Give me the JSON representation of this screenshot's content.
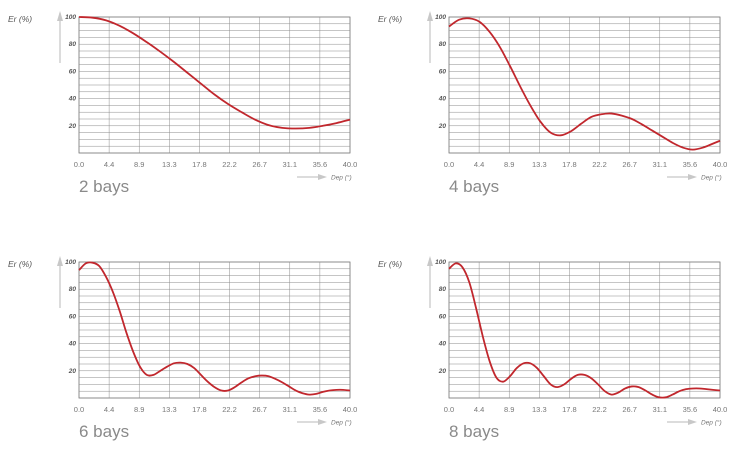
{
  "chart_data": [
    {
      "type": "line",
      "caption": "2 bays",
      "xlabel": "Dep (°)",
      "ylabel": "Er (%)",
      "x_ticks": [
        "0.0",
        "4.4",
        "8.9",
        "13.3",
        "17.8",
        "22.2",
        "26.7",
        "31.1",
        "35.6",
        "40.0"
      ],
      "y_ticks": [
        "100",
        "80",
        "60",
        "40",
        "20"
      ],
      "xlim": [
        0,
        40
      ],
      "ylim": [
        0,
        100
      ],
      "grid": true,
      "line_color": "#c1272d",
      "x": [
        0,
        2,
        4,
        6,
        8,
        10,
        12,
        14,
        16,
        18,
        20,
        22,
        24,
        26,
        28,
        30,
        32,
        34,
        36,
        38,
        40
      ],
      "y": [
        100,
        99.5,
        97.5,
        93.5,
        88,
        81.5,
        74.5,
        67,
        59,
        51,
        43,
        36,
        30,
        24.5,
        20.5,
        18.5,
        18,
        18.5,
        20,
        22,
        24.5
      ]
    },
    {
      "type": "line",
      "caption": "4 bays",
      "xlabel": "Dep (°)",
      "ylabel": "Er (%)",
      "x_ticks": [
        "0.0",
        "4.4",
        "8.9",
        "13.3",
        "17.8",
        "22.2",
        "26.7",
        "31.1",
        "35.6",
        "40.0"
      ],
      "y_ticks": [
        "100",
        "80",
        "60",
        "40",
        "20"
      ],
      "xlim": [
        0,
        40
      ],
      "ylim": [
        0,
        100
      ],
      "grid": true,
      "line_color": "#c1272d",
      "x": [
        0,
        1.5,
        3,
        4.5,
        6,
        7.5,
        9,
        10.5,
        12,
        13.5,
        15,
        16.5,
        18,
        19.5,
        21,
        22.5,
        24,
        25.5,
        27,
        28.5,
        30,
        31.5,
        33,
        34.5,
        36,
        37.5,
        39,
        40
      ],
      "y": [
        93,
        98,
        99,
        96.5,
        89,
        78,
        64,
        49,
        35,
        23,
        15,
        13,
        16,
        21.5,
        26.5,
        28.5,
        29,
        27.5,
        25,
        21,
        16.5,
        12,
        7.5,
        4,
        2.5,
        4,
        7,
        9
      ]
    },
    {
      "type": "line",
      "caption": "6 bays",
      "xlabel": "Dep (°)",
      "ylabel": "Er (%)",
      "x_ticks": [
        "0.0",
        "4.4",
        "8.9",
        "13.3",
        "17.8",
        "22.2",
        "26.7",
        "31.1",
        "35.6",
        "40.0"
      ],
      "y_ticks": [
        "100",
        "80",
        "60",
        "40",
        "20"
      ],
      "xlim": [
        0,
        40
      ],
      "ylim": [
        0,
        100
      ],
      "grid": true,
      "line_color": "#c1272d",
      "x": [
        0,
        1,
        2,
        3,
        4,
        5,
        6,
        7,
        8,
        9,
        10,
        11,
        12,
        13,
        14,
        15,
        16,
        17,
        18,
        19,
        20,
        21,
        22,
        23,
        24,
        25,
        26,
        27,
        28,
        29,
        30,
        31,
        32,
        33,
        34,
        35,
        36,
        37,
        38,
        39,
        40
      ],
      "y": [
        94,
        99,
        99.5,
        97,
        89,
        78,
        64,
        48,
        34,
        23,
        17,
        17,
        20,
        23,
        25.5,
        26,
        25,
        22,
        17,
        12,
        8,
        5.5,
        5.5,
        8,
        11.5,
        14.5,
        16,
        16.5,
        16,
        14,
        11.5,
        8.5,
        5.5,
        3.5,
        2.5,
        3,
        4.5,
        5.5,
        6,
        6,
        5.5
      ]
    },
    {
      "type": "line",
      "caption": "8 bays",
      "xlabel": "Dep (°)",
      "ylabel": "Er (%)",
      "x_ticks": [
        "0.0",
        "4.4",
        "8.9",
        "13.3",
        "17.8",
        "22.2",
        "26.7",
        "31.1",
        "35.6",
        "40.0"
      ],
      "y_ticks": [
        "100",
        "80",
        "60",
        "40",
        "20"
      ],
      "xlim": [
        0,
        40
      ],
      "ylim": [
        0,
        100
      ],
      "grid": true,
      "line_color": "#c1272d",
      "x": [
        0,
        1,
        2,
        3,
        4,
        5,
        6,
        7,
        8,
        9,
        10,
        11,
        12,
        13,
        14,
        15,
        16,
        17,
        18,
        19,
        20,
        21,
        22,
        23,
        24,
        25,
        26,
        27,
        28,
        29,
        30,
        31,
        32,
        33,
        34,
        35,
        36,
        37,
        38,
        39,
        40
      ],
      "y": [
        95,
        99,
        96,
        85,
        66,
        45,
        27,
        15,
        12,
        16,
        22,
        25.5,
        25.5,
        22,
        16,
        10,
        8,
        10,
        14,
        17,
        17,
        14.5,
        10,
        5,
        2.5,
        4,
        7,
        8.5,
        8,
        5.5,
        2.5,
        0.5,
        0.5,
        2.5,
        5,
        6.5,
        7,
        7,
        6.5,
        6,
        5.5
      ]
    }
  ]
}
